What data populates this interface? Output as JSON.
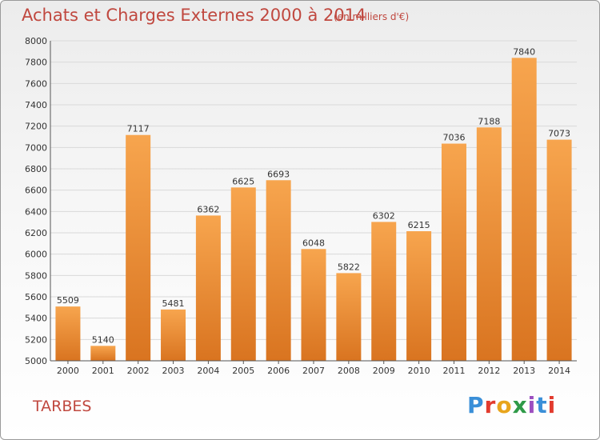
{
  "header": {
    "title": "Achats et Charges Externes 2000 à 2014",
    "subtitle": "(en milliers d'€)"
  },
  "footer": {
    "city": "TARBES",
    "logo_text": "Proxiti"
  },
  "colors": {
    "bar_light": "#f7a54e",
    "bar_dark": "#d97420",
    "title": "#c0483f",
    "grid": "#d9d9d9"
  },
  "chart_data": {
    "type": "bar",
    "categories": [
      "2000",
      "2001",
      "2002",
      "2003",
      "2004",
      "2005",
      "2006",
      "2007",
      "2008",
      "2009",
      "2010",
      "2011",
      "2012",
      "2013",
      "2014"
    ],
    "values": [
      5509,
      5140,
      7117,
      5481,
      6362,
      6625,
      6693,
      6048,
      5822,
      6302,
      6215,
      7036,
      7188,
      7840,
      7073
    ],
    "title": "Achats et Charges Externes 2000 à 2014",
    "xlabel": "",
    "ylabel": "",
    "ylim": [
      5000,
      8000
    ],
    "yticks": [
      5000,
      5200,
      5400,
      5600,
      5800,
      6000,
      6200,
      6400,
      6600,
      6800,
      7000,
      7200,
      7400,
      7600,
      7800,
      8000
    ],
    "grid": true,
    "data_labels": true
  }
}
